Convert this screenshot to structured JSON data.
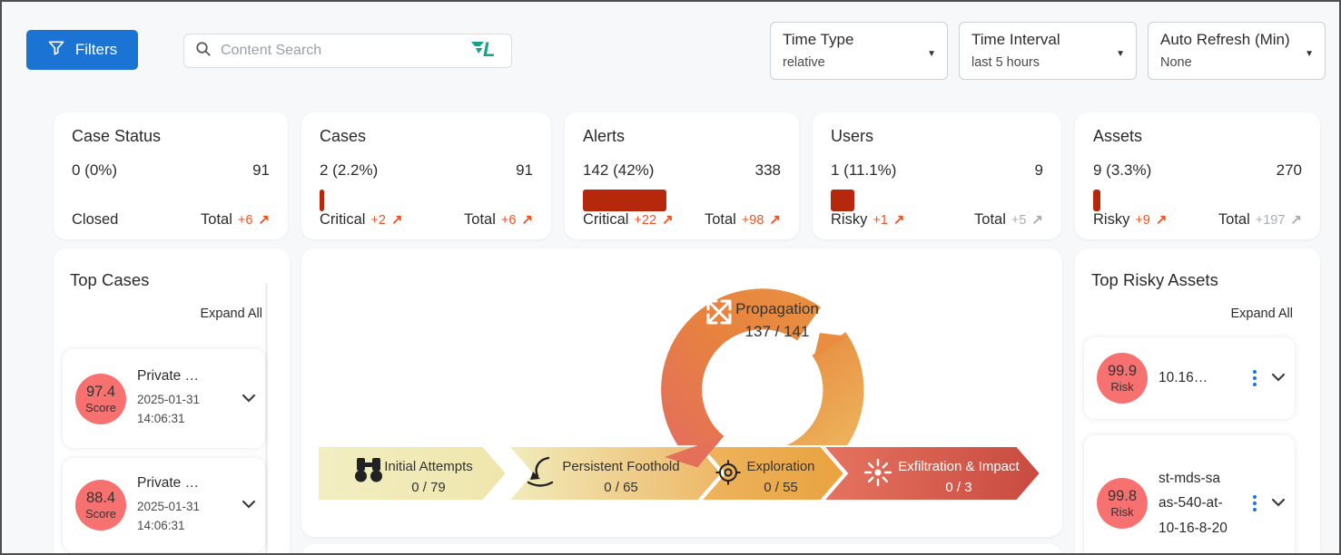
{
  "colors": {
    "accent_blue": "#1b74d3",
    "kebab_blue": "#1a73e8",
    "bar_red": "#b5280c",
    "delta_orange": "#f4511e",
    "muted_gray": "#a9adb2",
    "score_circle_red": "#f77171",
    "logo_teal": "#18a089"
  },
  "icons": {
    "trend_up": "↗",
    "caret_down": "▼"
  },
  "header": {
    "filters_button_label": "Filters",
    "search_placeholder": "Content Search",
    "time_type": {
      "label": "Time Type",
      "value": "relative"
    },
    "time_interval": {
      "label": "Time Interval",
      "value": "last 5 hours"
    },
    "auto_refresh": {
      "label": "Auto Refresh (Min)",
      "value": "None"
    }
  },
  "stat_cards": [
    {
      "title": "Case Status",
      "value": "0 (0%)",
      "total": "91",
      "bar_pct": 0,
      "footer_left_label": "Closed",
      "footer_right_label": "Total",
      "footer_right_delta": "+6"
    },
    {
      "title": "Cases",
      "value": "2 (2.2%)",
      "total": "91",
      "bar_pct": 2.2,
      "footer_left_label": "Critical",
      "footer_left_delta": "+2",
      "footer_right_label": "Total",
      "footer_right_delta": "+6"
    },
    {
      "title": "Alerts",
      "value": "142 (42%)",
      "total": "338",
      "bar_pct": 42,
      "footer_left_label": "Critical",
      "footer_left_delta": "+22",
      "footer_right_label": "Total",
      "footer_right_delta": "+98"
    },
    {
      "title": "Users",
      "value": "1 (11.1%)",
      "total": "9",
      "bar_pct": 11.1,
      "footer_left_label": "Risky",
      "footer_left_delta": "+1",
      "footer_right_label": "Total",
      "footer_right_delta": "+5"
    },
    {
      "title": "Assets",
      "value": "9 (3.3%)",
      "total": "270",
      "bar_pct": 3.3,
      "footer_left_label": "Risky",
      "footer_left_delta": "+9",
      "footer_right_label": "Total",
      "footer_right_delta": "+197"
    }
  ],
  "top_cases": {
    "title": "Top Cases",
    "expand_all": "Expand All",
    "items": [
      {
        "score": "97.4",
        "score_label": "Score",
        "name": "Private …",
        "date": "2025-01-31",
        "time": "14:06:31"
      },
      {
        "score": "88.4",
        "score_label": "Score",
        "name": "Private …",
        "date": "2025-01-31",
        "time": "14:06:31"
      }
    ]
  },
  "attack_flow": {
    "donut": {
      "label": "Propagation",
      "value": "137 / 141"
    },
    "stages": [
      {
        "label": "Initial Attempts",
        "value": "0 / 79",
        "icon": "binoculars-icon"
      },
      {
        "label": "Persistent Foothold",
        "value": "0 / 65",
        "icon": "anchor-hook-icon"
      },
      {
        "label": "Exploration",
        "value": "0 / 55",
        "icon": "target-icon"
      },
      {
        "label": "Exfiltration & Impact",
        "value": "0 / 3",
        "icon": "impact-burst-icon"
      }
    ]
  },
  "top_risky_assets": {
    "title": "Top Risky Assets",
    "expand_all": "Expand All",
    "items": [
      {
        "risk": "99.9",
        "risk_label": "Risk",
        "name": "10.16…"
      },
      {
        "risk": "99.8",
        "risk_label": "Risk",
        "name": "st-mds-saas-540-at-10-16-8-20"
      }
    ]
  }
}
